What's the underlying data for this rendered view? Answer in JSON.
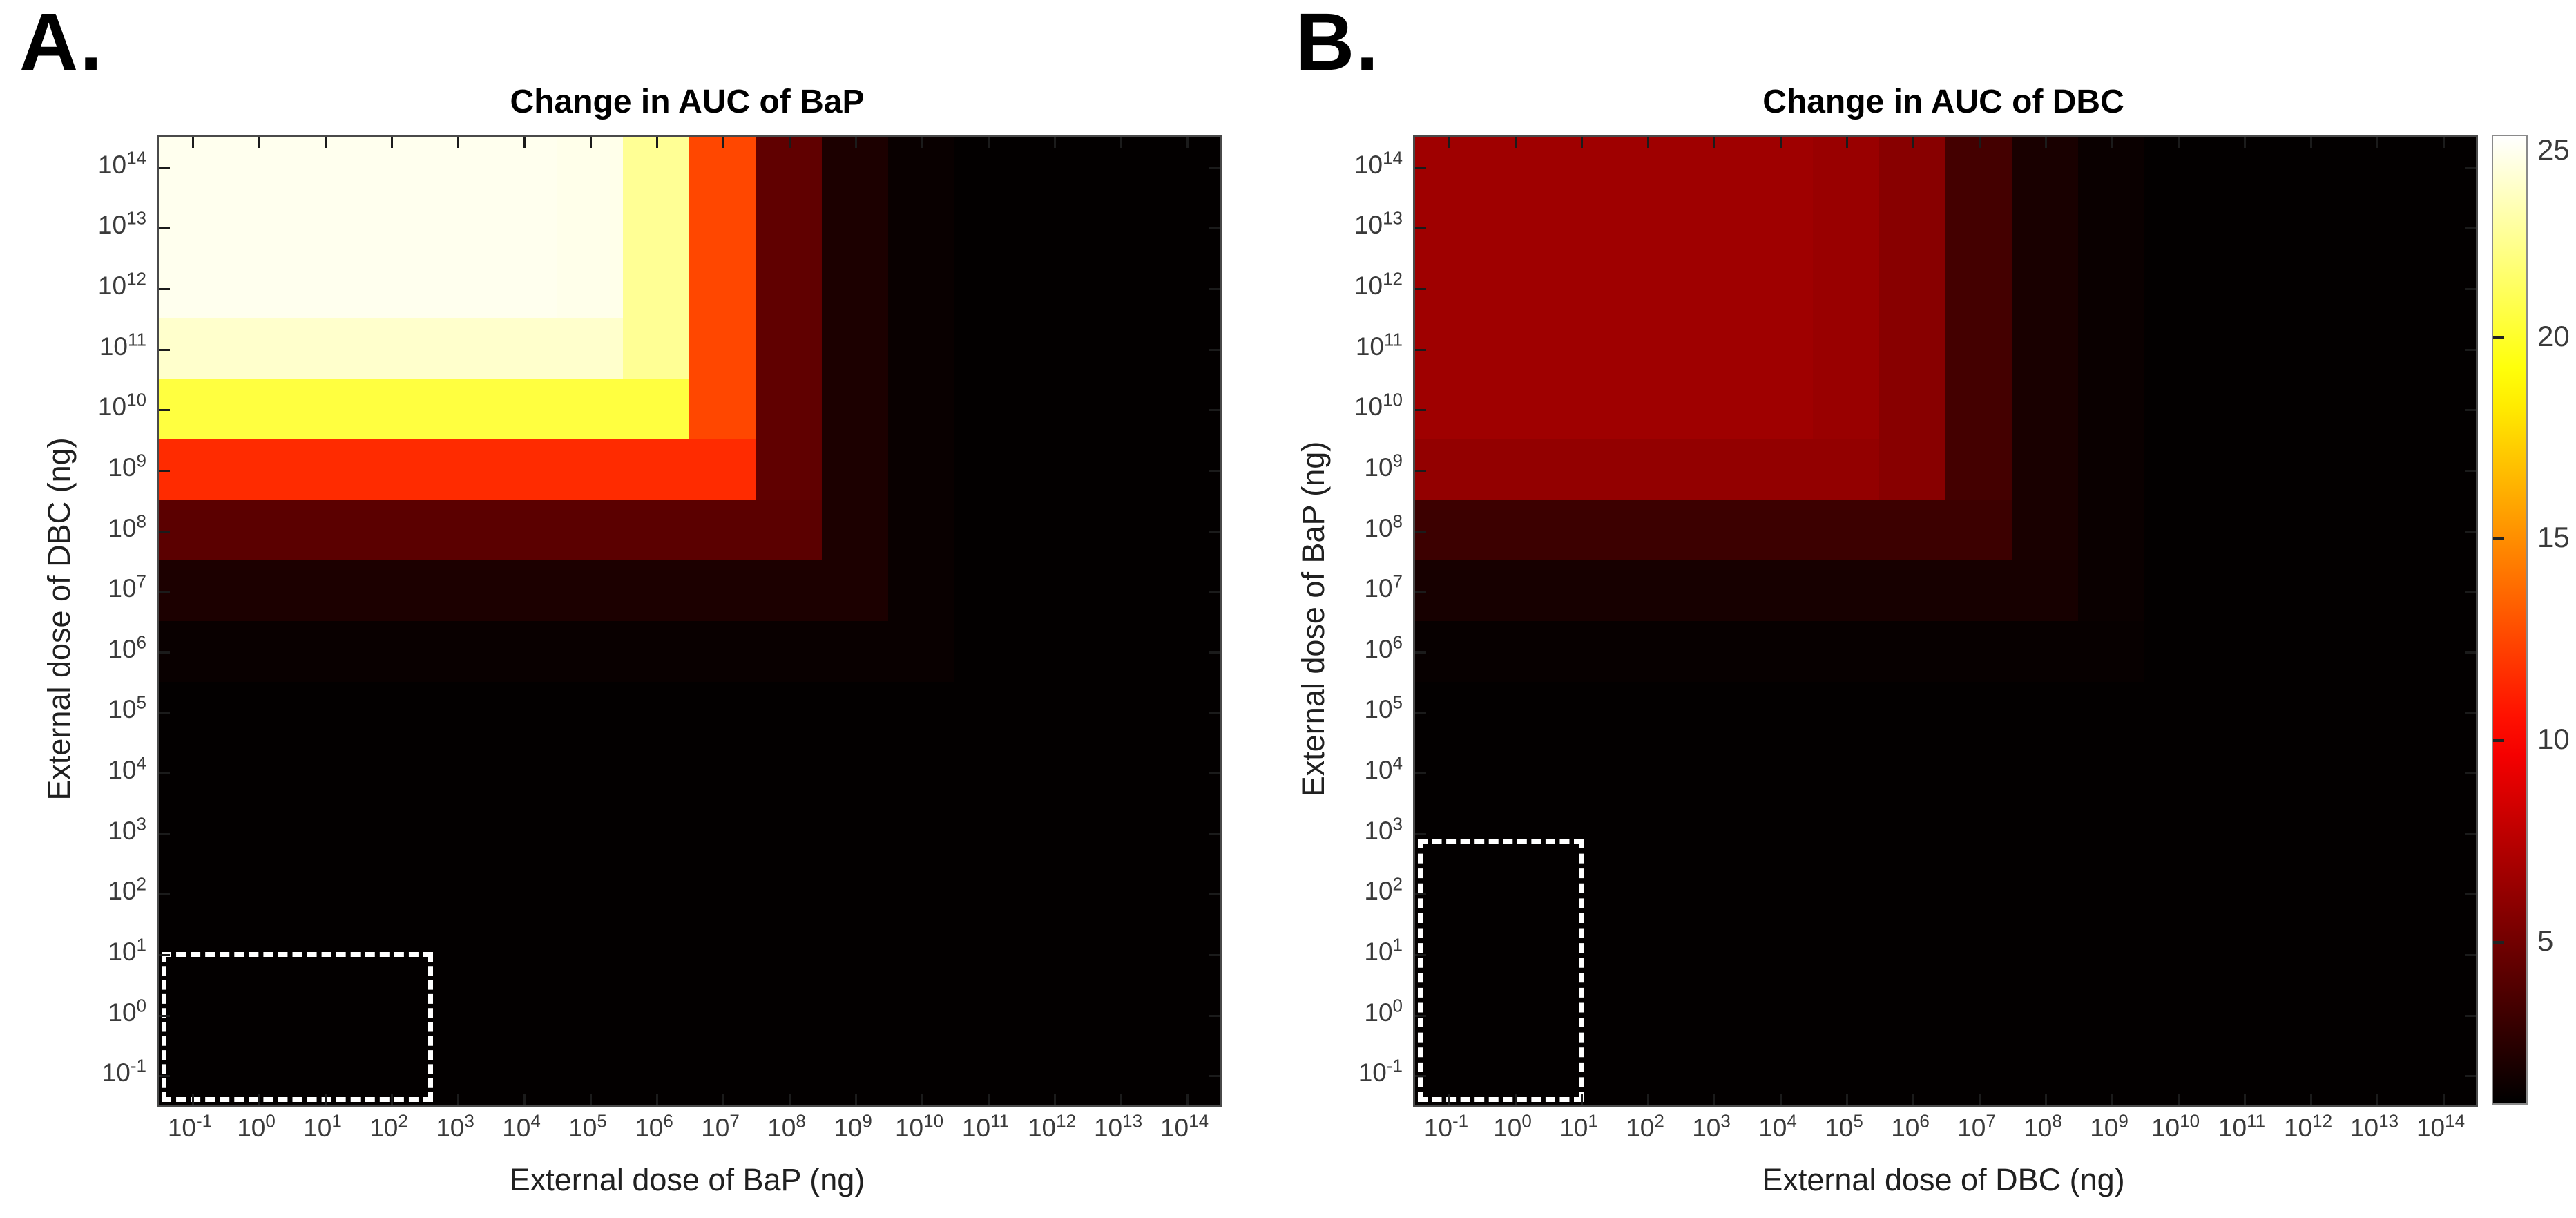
{
  "panel_letters": [
    "A.",
    "B."
  ],
  "tick_base": "10",
  "colorbar": {
    "colormap": "hot",
    "min": 1,
    "max": 25,
    "ticks": [
      25,
      20,
      15,
      10,
      5
    ]
  },
  "chart_data": [
    {
      "type": "heatmap",
      "panel": "A.",
      "title": "Change in AUC of BaP",
      "xlabel": "External dose of BaP (ng)",
      "ylabel": "External dose of DBC (ng)",
      "x_tick_exponents": [
        -1,
        0,
        1,
        2,
        3,
        4,
        5,
        6,
        7,
        8,
        9,
        10,
        11,
        12,
        13,
        14
      ],
      "y_tick_exponents": [
        -1,
        0,
        1,
        2,
        3,
        4,
        5,
        6,
        7,
        8,
        9,
        10,
        11,
        12,
        13,
        14
      ],
      "axis_units": "ng, log10 decades",
      "value_range": {
        "min": 1,
        "max": 25
      },
      "matrix_rows_top_to_bottom": [
        [
          24.6,
          24.6,
          24.6,
          24.6,
          24.6,
          24.6,
          24.5,
          22.5,
          12.5,
          4.4,
          2,
          1.3,
          1.1,
          1.1,
          1.1,
          1.1
        ],
        [
          24.6,
          24.6,
          24.6,
          24.6,
          24.6,
          24.6,
          24.5,
          22.5,
          12.5,
          4.4,
          2,
          1.3,
          1.1,
          1.1,
          1.1,
          1.1
        ],
        [
          24.6,
          24.6,
          24.6,
          24.6,
          24.6,
          24.6,
          24.5,
          22.5,
          12.5,
          4.4,
          2,
          1.3,
          1.1,
          1.1,
          1.1,
          1.1
        ],
        [
          23.8,
          23.8,
          23.8,
          23.8,
          23.8,
          23.8,
          23.8,
          22.5,
          12.5,
          4.4,
          2,
          1.3,
          1.1,
          1.1,
          1.1,
          1.1
        ],
        [
          20.5,
          20.5,
          20.5,
          20.5,
          20.5,
          20.5,
          20.5,
          20.5,
          12.5,
          4.4,
          2,
          1.3,
          1.1,
          1.1,
          1.1,
          1.1
        ],
        [
          11.5,
          11.5,
          11.5,
          11.5,
          11.5,
          11.5,
          11.5,
          11.5,
          11.5,
          4.4,
          2,
          1.3,
          1.1,
          1.1,
          1.1,
          1.1
        ],
        [
          4.2,
          4.2,
          4.2,
          4.2,
          4.2,
          4.2,
          4.2,
          4.2,
          4.2,
          4.2,
          2,
          1.3,
          1.1,
          1.1,
          1.1,
          1.1
        ],
        [
          2,
          2,
          2,
          2,
          2,
          2,
          2,
          2,
          2,
          2,
          2,
          1.3,
          1.1,
          1.1,
          1.1,
          1.1
        ],
        [
          1.3,
          1.3,
          1.3,
          1.3,
          1.3,
          1.3,
          1.3,
          1.3,
          1.3,
          1.3,
          1.3,
          1.3,
          1.1,
          1.1,
          1.1,
          1.1
        ],
        [
          1.1,
          1.1,
          1.1,
          1.1,
          1.1,
          1.1,
          1.1,
          1.1,
          1.1,
          1.1,
          1.1,
          1.1,
          1.1,
          1.1,
          1.1,
          1.1
        ],
        [
          1.1,
          1.1,
          1.1,
          1.1,
          1.1,
          1.1,
          1.1,
          1.1,
          1.1,
          1.1,
          1.1,
          1.1,
          1.1,
          1.1,
          1.1,
          1.1
        ],
        [
          1.1,
          1.1,
          1.1,
          1.1,
          1.1,
          1.1,
          1.1,
          1.1,
          1.1,
          1.1,
          1.1,
          1.1,
          1.1,
          1.1,
          1.1,
          1.1
        ],
        [
          1.1,
          1.1,
          1.1,
          1.1,
          1.1,
          1.1,
          1.1,
          1.1,
          1.1,
          1.1,
          1.1,
          1.1,
          1.1,
          1.1,
          1.1,
          1.1
        ],
        [
          1.1,
          1.1,
          1.1,
          1.1,
          1.1,
          1.1,
          1.1,
          1.1,
          1.1,
          1.1,
          1.1,
          1.1,
          1.1,
          1.1,
          1.1,
          1.1
        ],
        [
          1.1,
          1.1,
          1.1,
          1.1,
          1.1,
          1.1,
          1.1,
          1.1,
          1.1,
          1.1,
          1.1,
          1.1,
          1.1,
          1.1,
          1.1,
          1.1
        ],
        [
          1.1,
          1.1,
          1.1,
          1.1,
          1.1,
          1.1,
          1.1,
          1.1,
          1.1,
          1.1,
          1.1,
          1.1,
          1.1,
          1.1,
          1.1,
          1.1
        ]
      ],
      "dashed_box": {
        "covers_x": "10^-1 to ~10^2.5",
        "covers_y": "10^-1 to 10^1",
        "width_pct": 25.6,
        "height_pct": 15.5
      }
    },
    {
      "type": "heatmap",
      "panel": "B.",
      "title": "Change in AUC of DBC",
      "xlabel": "External dose of DBC (ng)",
      "ylabel": "External dose of BaP (ng)",
      "x_tick_exponents": [
        -1,
        0,
        1,
        2,
        3,
        4,
        5,
        6,
        7,
        8,
        9,
        10,
        11,
        12,
        13,
        14
      ],
      "y_tick_exponents": [
        -1,
        0,
        1,
        2,
        3,
        4,
        5,
        6,
        7,
        8,
        9,
        10,
        11,
        12,
        13,
        14
      ],
      "axis_units": "ng, log10 decades",
      "value_range": {
        "min": 1,
        "max": 25
      },
      "matrix_rows_top_to_bottom": [
        [
          6.6,
          6.6,
          6.6,
          6.6,
          6.6,
          6.6,
          6.4,
          5.8,
          3.4,
          1.9,
          1.35,
          1.1,
          1.1,
          1.1,
          1.1,
          1.1
        ],
        [
          6.6,
          6.6,
          6.6,
          6.6,
          6.6,
          6.6,
          6.4,
          5.8,
          3.4,
          1.9,
          1.35,
          1.1,
          1.1,
          1.1,
          1.1,
          1.1
        ],
        [
          6.6,
          6.6,
          6.6,
          6.6,
          6.6,
          6.6,
          6.4,
          5.8,
          3.4,
          1.9,
          1.35,
          1.1,
          1.1,
          1.1,
          1.1,
          1.1
        ],
        [
          6.6,
          6.6,
          6.6,
          6.6,
          6.6,
          6.6,
          6.4,
          5.8,
          3.4,
          1.9,
          1.35,
          1.1,
          1.1,
          1.1,
          1.1,
          1.1
        ],
        [
          6.6,
          6.6,
          6.6,
          6.6,
          6.6,
          6.6,
          6.4,
          5.8,
          3.4,
          1.9,
          1.35,
          1.1,
          1.1,
          1.1,
          1.1,
          1.1
        ],
        [
          6.2,
          6.2,
          6.2,
          6.2,
          6.2,
          6.2,
          6.2,
          5.8,
          3.4,
          1.9,
          1.35,
          1.1,
          1.1,
          1.1,
          1.1,
          1.1
        ],
        [
          3.1,
          3.1,
          3.1,
          3.1,
          3.1,
          3.1,
          3.1,
          3.1,
          3.1,
          1.9,
          1.35,
          1.1,
          1.1,
          1.1,
          1.1,
          1.1
        ],
        [
          1.8,
          1.8,
          1.8,
          1.8,
          1.8,
          1.8,
          1.8,
          1.8,
          1.8,
          1.8,
          1.35,
          1.1,
          1.1,
          1.1,
          1.1,
          1.1
        ],
        [
          1.25,
          1.25,
          1.25,
          1.25,
          1.25,
          1.25,
          1.25,
          1.25,
          1.25,
          1.25,
          1.25,
          1.1,
          1.1,
          1.1,
          1.1,
          1.1
        ],
        [
          1.1,
          1.1,
          1.1,
          1.1,
          1.1,
          1.1,
          1.1,
          1.1,
          1.1,
          1.1,
          1.1,
          1.1,
          1.1,
          1.1,
          1.1,
          1.1
        ],
        [
          1.1,
          1.1,
          1.1,
          1.1,
          1.1,
          1.1,
          1.1,
          1.1,
          1.1,
          1.1,
          1.1,
          1.1,
          1.1,
          1.1,
          1.1,
          1.1
        ],
        [
          1.1,
          1.1,
          1.1,
          1.1,
          1.1,
          1.1,
          1.1,
          1.1,
          1.1,
          1.1,
          1.1,
          1.1,
          1.1,
          1.1,
          1.1,
          1.1
        ],
        [
          1.1,
          1.1,
          1.1,
          1.1,
          1.1,
          1.1,
          1.1,
          1.1,
          1.1,
          1.1,
          1.1,
          1.1,
          1.1,
          1.1,
          1.1,
          1.1
        ],
        [
          1.1,
          1.1,
          1.1,
          1.1,
          1.1,
          1.1,
          1.1,
          1.1,
          1.1,
          1.1,
          1.1,
          1.1,
          1.1,
          1.1,
          1.1,
          1.1
        ],
        [
          1.1,
          1.1,
          1.1,
          1.1,
          1.1,
          1.1,
          1.1,
          1.1,
          1.1,
          1.1,
          1.1,
          1.1,
          1.1,
          1.1,
          1.1,
          1.1
        ],
        [
          1.1,
          1.1,
          1.1,
          1.1,
          1.1,
          1.1,
          1.1,
          1.1,
          1.1,
          1.1,
          1.1,
          1.1,
          1.1,
          1.1,
          1.1,
          1.1
        ]
      ],
      "dashed_box": {
        "covers_x": "10^-1 to 10^1",
        "covers_y": "10^-1 to ~10^2.7",
        "width_pct": 15.6,
        "height_pct": 27.2
      }
    }
  ]
}
